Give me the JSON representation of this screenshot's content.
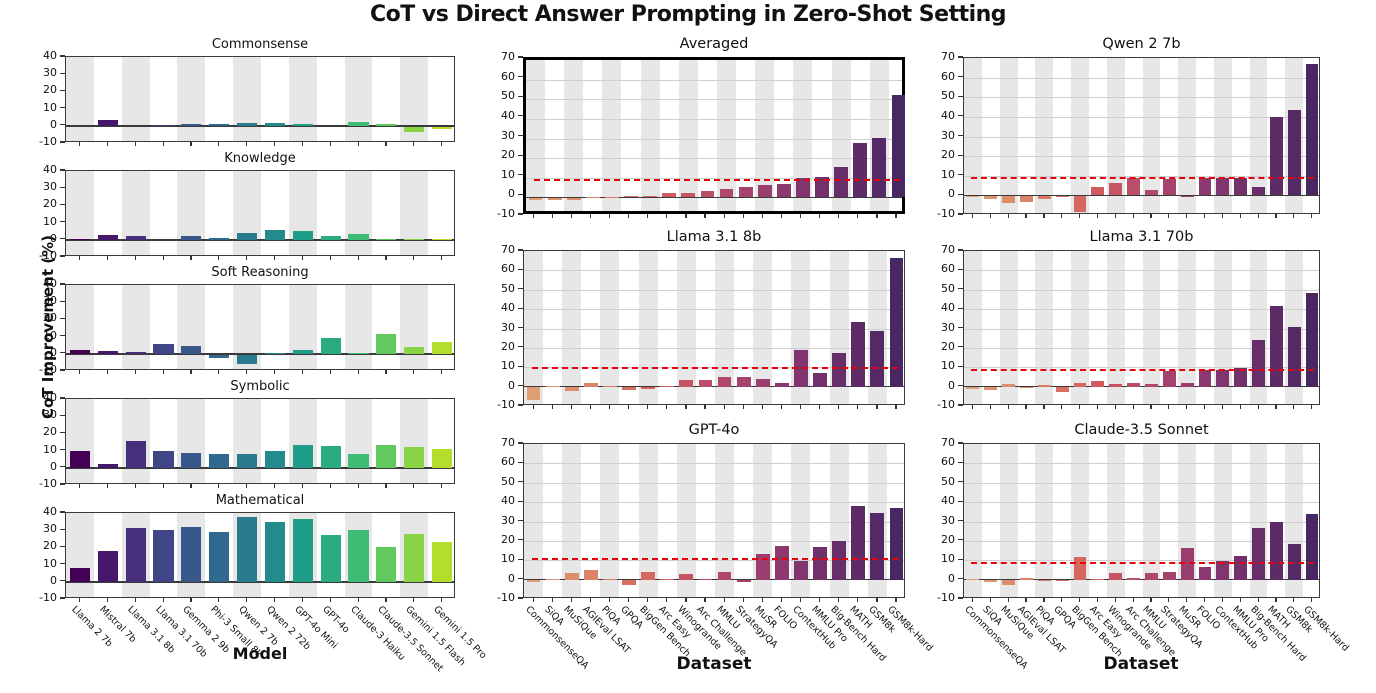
{
  "title": "CoT vs Direct Answer Prompting in Zero-Shot Setting",
  "ylabel": "CoT Improvement (%)",
  "xlabels": {
    "model": "Model",
    "dataset": "Dataset"
  },
  "models": [
    "Llama 2 7b",
    "Mistral 7b",
    "Llama 3.1 8b",
    "Llama 3.1 70b",
    "Gemma 2 9b",
    "Phi-3 Small 8k",
    "Qwen 2 7b",
    "Qwen 2 72b",
    "GPT-4o Mini",
    "GPT-4o",
    "Claude-3 Haiku",
    "Claude-3.5 Sonnet",
    "Gemini 1.5 Flash",
    "Gemini 1.5 Pro"
  ],
  "datasets": [
    "CommonsenseQA",
    "SiQA",
    "MuSiQue",
    "AGIEval LSAT",
    "PiQA",
    "GPQA",
    "BigGen Bench",
    "Arc Easy",
    "Winogrande",
    "Arc Challenge",
    "MMLU",
    "StrategyQA",
    "MuSR",
    "FOLIO",
    "ContextHub",
    "MMLU Pro",
    "Big-Bench Hard",
    "MATH",
    "GSM8k",
    "GSM8k-Hard"
  ],
  "colors": {
    "band": "#e7e7e7",
    "grid": "#cfcfcf",
    "zero_line": "#3a3a3a",
    "avg_line": "#e8000b",
    "border": "#3a3a3a",
    "highlight_border": "#000000"
  },
  "chart_data": [
    {
      "id": "commonsense",
      "type": "bar",
      "title": "Commonsense",
      "panel": {
        "col": "left",
        "row": 0
      },
      "categories_ref": "models",
      "palette": "viridis",
      "ylim": [
        -10,
        40
      ],
      "yticks": [
        40,
        30,
        20,
        10,
        0,
        -10
      ],
      "grid": false,
      "show_xticklabels": false,
      "values": [
        0,
        3.2,
        0,
        0.4,
        1,
        1.3,
        1.7,
        1.6,
        1.1,
        0,
        2.3,
        0.8,
        -3,
        -1.5
      ]
    },
    {
      "id": "knowledge",
      "type": "bar",
      "title": "Knowledge",
      "panel": {
        "col": "left",
        "row": 1
      },
      "categories_ref": "models",
      "palette": "viridis",
      "ylim": [
        -10,
        40
      ],
      "yticks": [
        40,
        30,
        20,
        10,
        0,
        -10
      ],
      "grid": false,
      "show_xticklabels": false,
      "values": [
        0.5,
        3,
        2,
        0,
        2,
        1,
        3.7,
        5.8,
        5.2,
        2.5,
        3.3,
        0.5,
        0.3,
        0.3
      ]
    },
    {
      "id": "soft-reasoning",
      "type": "bar",
      "title": "Soft Reasoning",
      "panel": {
        "col": "left",
        "row": 2
      },
      "categories_ref": "models",
      "palette": "viridis",
      "ylim": [
        -10,
        40
      ],
      "yticks": [
        40,
        30,
        20,
        10,
        0,
        -10
      ],
      "grid": false,
      "show_xticklabels": false,
      "values": [
        2.2,
        1.7,
        1.2,
        5.5,
        4.5,
        -2,
        -5.5,
        0.7,
        2,
        9.3,
        0.2,
        11.7,
        3.8,
        7
      ]
    },
    {
      "id": "symbolic",
      "type": "bar",
      "title": "Symbolic",
      "panel": {
        "col": "left",
        "row": 3
      },
      "categories_ref": "models",
      "palette": "viridis",
      "ylim": [
        -10,
        40
      ],
      "yticks": [
        40,
        30,
        20,
        10,
        0,
        -10
      ],
      "grid": false,
      "show_xticklabels": false,
      "values": [
        10,
        2.2,
        15.5,
        9.7,
        8.5,
        8.2,
        7.8,
        9.7,
        13,
        12.5,
        8.2,
        13,
        12,
        10.7
      ]
    },
    {
      "id": "mathematical",
      "type": "bar",
      "title": "Mathematical",
      "panel": {
        "col": "left",
        "row": 4
      },
      "categories_ref": "models",
      "palette": "viridis",
      "ylim": [
        -10,
        40
      ],
      "yticks": [
        40,
        30,
        20,
        10,
        0,
        -10
      ],
      "grid": false,
      "show_xticklabels": true,
      "values": [
        8,
        18,
        31.5,
        30,
        32,
        29,
        37.5,
        34.5,
        36.5,
        27,
        30,
        20.5,
        28,
        23
      ]
    },
    {
      "id": "averaged",
      "type": "bar",
      "title": "Averaged",
      "highlighted": true,
      "panel": {
        "col": "mid",
        "row": 0
      },
      "categories_ref": "datasets",
      "palette": "flare",
      "ylim": [
        -10,
        70
      ],
      "yticks": [
        70,
        60,
        50,
        40,
        30,
        20,
        10,
        0,
        -10
      ],
      "grid": true,
      "avg_line": 8.7,
      "show_xticklabels": false,
      "values": [
        -1,
        -1,
        -1,
        0.2,
        0.2,
        0.5,
        0.8,
        2,
        2.3,
        3,
        4.2,
        5.3,
        6.5,
        7,
        9.8,
        10.3,
        15.5,
        27.5,
        30.5,
        52
      ]
    },
    {
      "id": "qwen-2-7b",
      "type": "bar",
      "title": "Qwen 2 7b",
      "panel": {
        "col": "right",
        "row": 0
      },
      "categories_ref": "datasets",
      "palette": "flare",
      "ylim": [
        -10,
        70
      ],
      "yticks": [
        70,
        60,
        50,
        40,
        30,
        20,
        10,
        0,
        -10
      ],
      "grid": true,
      "avg_line": 8.5,
      "show_xticklabels": false,
      "values": [
        -0.5,
        -1.5,
        -3.5,
        -3,
        -1.5,
        -0.3,
        -8,
        4.5,
        6.5,
        9,
        2.5,
        8.5,
        -0.5,
        9,
        9,
        9,
        4.5,
        40,
        43.5,
        67
      ]
    },
    {
      "id": "llama-3-1-8b",
      "type": "bar",
      "title": "Llama 3.1 8b",
      "panel": {
        "col": "mid",
        "row": 1
      },
      "categories_ref": "datasets",
      "palette": "flare",
      "ylim": [
        -10,
        70
      ],
      "yticks": [
        70,
        60,
        50,
        40,
        30,
        20,
        10,
        0,
        -10
      ],
      "grid": true,
      "avg_line": 9.5,
      "show_xticklabels": false,
      "values": [
        -6.5,
        0.2,
        -2,
        1.8,
        0.5,
        -1.2,
        -1,
        0.5,
        3.2,
        3.3,
        5,
        5.2,
        3.7,
        2,
        19,
        7,
        17.5,
        33.5,
        28.5,
        66.5
      ]
    },
    {
      "id": "llama-3-1-70b",
      "type": "bar",
      "title": "Llama 3.1 70b",
      "panel": {
        "col": "right",
        "row": 1
      },
      "categories_ref": "datasets",
      "palette": "flare",
      "ylim": [
        -10,
        70
      ],
      "yticks": [
        70,
        60,
        50,
        40,
        30,
        20,
        10,
        0,
        -10
      ],
      "grid": true,
      "avg_line": 8.5,
      "show_xticklabels": false,
      "values": [
        -0.7,
        -1.5,
        1.5,
        -0.3,
        0.8,
        -2.5,
        1.8,
        3,
        1.5,
        1.8,
        1.5,
        8,
        1.8,
        8.5,
        8.5,
        9.5,
        24,
        41.5,
        31,
        48.5
      ]
    },
    {
      "id": "gpt-4o",
      "type": "bar",
      "title": "GPT-4o",
      "panel": {
        "col": "mid",
        "row": 2
      },
      "categories_ref": "datasets",
      "palette": "flare",
      "ylim": [
        -10,
        70
      ],
      "yticks": [
        70,
        60,
        50,
        40,
        30,
        20,
        10,
        0,
        -10
      ],
      "grid": true,
      "avg_line": 10.5,
      "show_xticklabels": true,
      "values": [
        -0.7,
        0.2,
        3.2,
        5,
        0.2,
        -2.3,
        3.7,
        0.5,
        3,
        0.5,
        4,
        -1,
        13,
        17.3,
        9.5,
        17,
        20,
        38,
        34.3,
        37
      ]
    },
    {
      "id": "claude-3-5-sonnet",
      "type": "bar",
      "title": "Claude-3.5 Sonnet",
      "panel": {
        "col": "right",
        "row": 2
      },
      "categories_ref": "datasets",
      "palette": "flare",
      "ylim": [
        -10,
        70
      ],
      "yticks": [
        70,
        60,
        50,
        40,
        30,
        20,
        10,
        0,
        -10
      ],
      "grid": true,
      "avg_line": 8.7,
      "show_xticklabels": true,
      "values": [
        0.5,
        -1,
        -2.5,
        1,
        -0.3,
        -0.3,
        11.5,
        0.2,
        3.5,
        0.7,
        3.2,
        3.8,
        16.5,
        6.5,
        9.8,
        12.3,
        26.5,
        29.5,
        18.5,
        34
      ]
    }
  ]
}
